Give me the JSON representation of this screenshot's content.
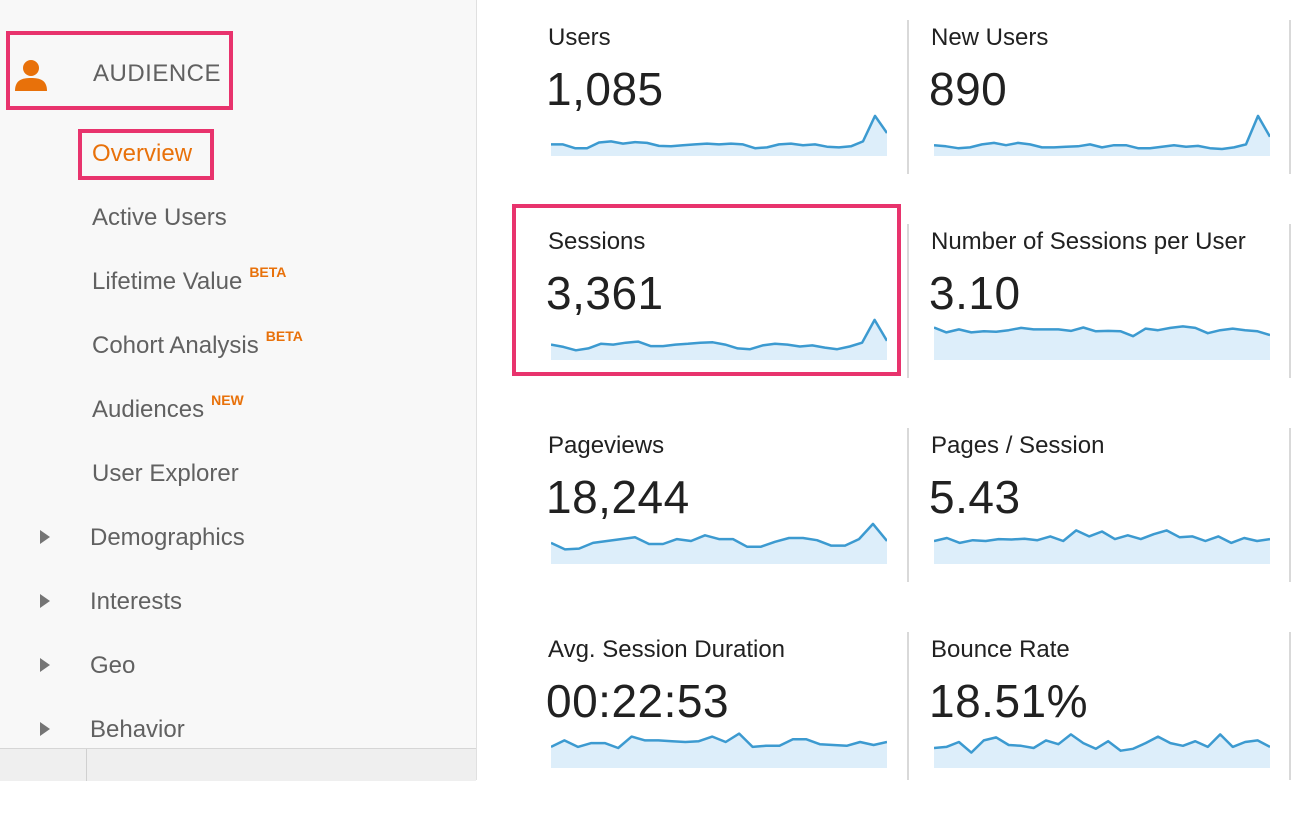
{
  "sidebar": {
    "section_label": "AUDIENCE",
    "items": [
      {
        "label": "Overview",
        "badge": "",
        "active": true
      },
      {
        "label": "Active Users",
        "badge": ""
      },
      {
        "label": "Lifetime Value",
        "badge": "BETA"
      },
      {
        "label": "Cohort Analysis",
        "badge": "BETA"
      },
      {
        "label": "Audiences",
        "badge": "NEW"
      },
      {
        "label": "User Explorer",
        "badge": ""
      }
    ],
    "groups": [
      "Demographics",
      "Interests",
      "Geo",
      "Behavior"
    ]
  },
  "metrics": [
    {
      "title": "Users",
      "value": "1,085",
      "trend": [
        0.2,
        0.2,
        0.1,
        0.1,
        0.25,
        0.28,
        0.22,
        0.26,
        0.24,
        0.16,
        0.15,
        0.18,
        0.2,
        0.22,
        0.2,
        0.22,
        0.2,
        0.1,
        0.12,
        0.2,
        0.22,
        0.18,
        0.2,
        0.14,
        0.12,
        0.15,
        0.28,
        0.95,
        0.5
      ]
    },
    {
      "title": "New Users",
      "value": "890",
      "trend": [
        0.18,
        0.15,
        0.1,
        0.12,
        0.2,
        0.24,
        0.18,
        0.24,
        0.2,
        0.12,
        0.12,
        0.14,
        0.15,
        0.2,
        0.12,
        0.18,
        0.18,
        0.1,
        0.1,
        0.14,
        0.18,
        0.14,
        0.16,
        0.1,
        0.08,
        0.12,
        0.2,
        0.95,
        0.4
      ]
    },
    {
      "title": "Sessions",
      "value": "3,361",
      "trend": [
        0.3,
        0.24,
        0.15,
        0.2,
        0.32,
        0.3,
        0.35,
        0.38,
        0.26,
        0.26,
        0.3,
        0.32,
        0.35,
        0.36,
        0.3,
        0.2,
        0.18,
        0.28,
        0.32,
        0.3,
        0.25,
        0.28,
        0.22,
        0.18,
        0.25,
        0.35,
        0.95,
        0.4
      ]
    },
    {
      "title": "Number of Sessions per User",
      "value": "3.10",
      "trend": [
        0.75,
        0.62,
        0.7,
        0.62,
        0.65,
        0.64,
        0.68,
        0.74,
        0.7,
        0.7,
        0.7,
        0.66,
        0.75,
        0.65,
        0.66,
        0.65,
        0.52,
        0.72,
        0.68,
        0.74,
        0.78,
        0.74,
        0.6,
        0.68,
        0.72,
        0.68,
        0.65,
        0.55
      ]
    },
    {
      "title": "Pageviews",
      "value": "18,244",
      "trend": [
        0.45,
        0.28,
        0.3,
        0.45,
        0.5,
        0.55,
        0.6,
        0.42,
        0.42,
        0.55,
        0.5,
        0.65,
        0.55,
        0.55,
        0.35,
        0.35,
        0.48,
        0.58,
        0.58,
        0.52,
        0.38,
        0.38,
        0.55,
        0.95,
        0.5
      ]
    },
    {
      "title": "Pages / Session",
      "value": "5.43",
      "trend": [
        0.5,
        0.58,
        0.45,
        0.52,
        0.5,
        0.55,
        0.54,
        0.56,
        0.52,
        0.62,
        0.5,
        0.78,
        0.62,
        0.75,
        0.55,
        0.65,
        0.55,
        0.68,
        0.78,
        0.6,
        0.62,
        0.5,
        0.62,
        0.45,
        0.58,
        0.5,
        0.55
      ]
    },
    {
      "title": "Avg. Session Duration",
      "value": "00:22:53",
      "trend": [
        0.45,
        0.62,
        0.45,
        0.55,
        0.55,
        0.42,
        0.72,
        0.62,
        0.62,
        0.6,
        0.58,
        0.6,
        0.72,
        0.58,
        0.8,
        0.45,
        0.48,
        0.48,
        0.65,
        0.65,
        0.52,
        0.5,
        0.48,
        0.58,
        0.5,
        0.58
      ]
    },
    {
      "title": "Bounce Rate",
      "value": "18.51%",
      "trend": [
        0.42,
        0.45,
        0.58,
        0.3,
        0.62,
        0.7,
        0.5,
        0.48,
        0.42,
        0.62,
        0.52,
        0.78,
        0.55,
        0.4,
        0.6,
        0.35,
        0.4,
        0.55,
        0.72,
        0.55,
        0.48,
        0.6,
        0.45,
        0.78,
        0.45,
        0.58,
        0.62,
        0.45
      ]
    }
  ],
  "colors": {
    "accent": "#e8710a",
    "highlight": "#e8336d",
    "sparkline": "#3c9ad0",
    "sparkline_fill": "#ddeefa"
  }
}
